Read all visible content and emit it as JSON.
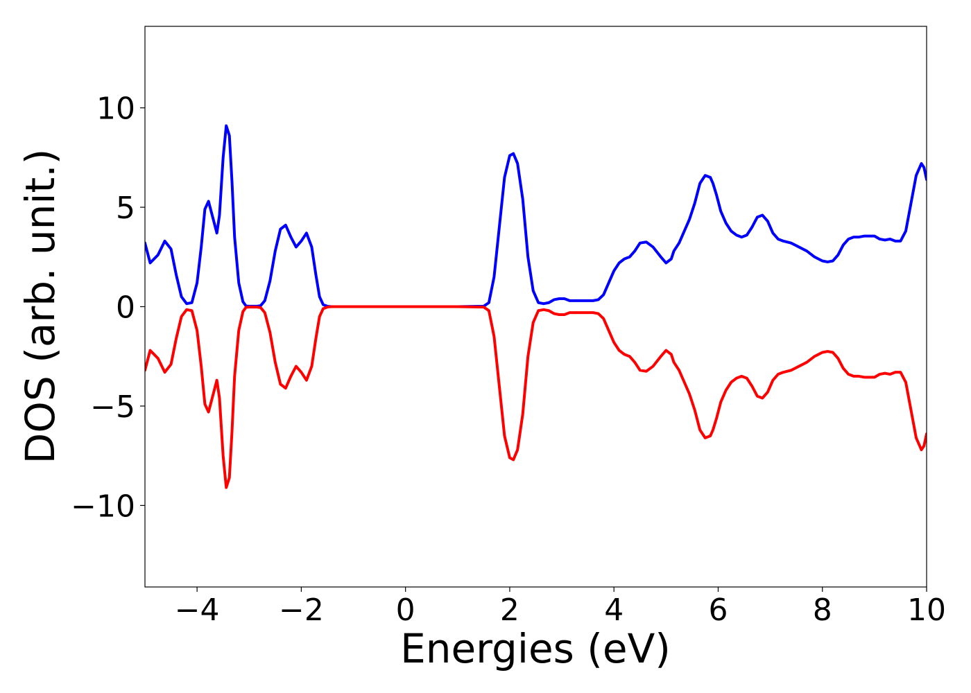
{
  "chart_data": {
    "type": "line",
    "title": "",
    "xlabel": "Energies (eV)",
    "ylabel": "DOS (arb. unit.)",
    "xlim": [
      -5,
      10
    ],
    "ylim": [
      -14.1,
      14.1
    ],
    "x_ticks": [
      -4,
      -2,
      0,
      2,
      4,
      6,
      8,
      10
    ],
    "x_tick_labels": [
      "−4",
      "−2",
      "0",
      "2",
      "4",
      "6",
      "8",
      "10"
    ],
    "y_ticks": [
      -10,
      -5,
      0,
      5,
      10
    ],
    "y_tick_labels": [
      "−10",
      "−5",
      "0",
      "5",
      "10"
    ],
    "grid": false,
    "legend": "none",
    "series": [
      {
        "color": "#0000ff",
        "x": [
          -5.0,
          -4.9,
          -4.75,
          -4.62,
          -4.5,
          -4.4,
          -4.3,
          -4.2,
          -4.1,
          -4.0,
          -3.92,
          -3.85,
          -3.78,
          -3.7,
          -3.62,
          -3.57,
          -3.5,
          -3.44,
          -3.38,
          -3.33,
          -3.28,
          -3.2,
          -3.12,
          -3.06,
          -3.0,
          -2.94,
          -2.86,
          -2.78,
          -2.7,
          -2.6,
          -2.5,
          -2.4,
          -2.3,
          -2.2,
          -2.1,
          -2.0,
          -1.9,
          -1.8,
          -1.72,
          -1.65,
          -1.58,
          -1.5,
          -1.42,
          -1.33,
          -1.24,
          -1.15,
          -1.06,
          -1.0,
          -0.94,
          -0.86,
          -0.78,
          -0.7,
          -0.6,
          -0.5,
          0.0,
          0.5,
          1.0,
          1.5,
          1.6,
          1.7,
          1.8,
          1.9,
          2.0,
          2.07,
          2.15,
          2.25,
          2.35,
          2.45,
          2.55,
          2.65,
          2.75,
          2.85,
          2.95,
          3.05,
          3.15,
          3.3,
          3.45,
          3.6,
          3.7,
          3.8,
          3.9,
          4.0,
          4.1,
          4.2,
          4.3,
          4.4,
          4.5,
          4.62,
          4.75,
          4.9,
          5.0,
          5.1,
          5.15,
          5.25,
          5.35,
          5.45,
          5.55,
          5.65,
          5.75,
          5.85,
          5.9,
          5.97,
          6.05,
          6.15,
          6.25,
          6.35,
          6.45,
          6.55,
          6.65,
          6.75,
          6.85,
          6.95,
          7.05,
          7.15,
          7.25,
          7.4,
          7.55,
          7.7,
          7.85,
          8.0,
          8.1,
          8.2,
          8.3,
          8.4,
          8.5,
          8.6,
          8.7,
          8.8,
          8.9,
          9.0,
          9.1,
          9.2,
          9.3,
          9.4,
          9.5,
          9.6,
          9.7,
          9.8,
          9.9,
          9.95,
          10.0
        ],
        "y": [
          3.2,
          2.2,
          2.6,
          3.3,
          2.9,
          1.6,
          0.5,
          0.15,
          0.2,
          1.2,
          3.0,
          4.9,
          5.3,
          4.5,
          3.7,
          4.6,
          7.5,
          9.1,
          8.6,
          6.3,
          3.5,
          1.2,
          0.25,
          0.03,
          0.02,
          0.02,
          0.02,
          0.05,
          0.3,
          1.3,
          2.8,
          3.9,
          4.1,
          3.5,
          3.0,
          3.3,
          3.7,
          3.0,
          1.6,
          0.5,
          0.1,
          0.02,
          0.0,
          0.0,
          0.0,
          0.0,
          0.0,
          0.0,
          0.0,
          0.0,
          0.0,
          0.0,
          0.0,
          0.0,
          0.0,
          0.0,
          0.0,
          0.02,
          0.2,
          1.5,
          4.0,
          6.5,
          7.6,
          7.7,
          7.2,
          5.4,
          2.5,
          0.8,
          0.2,
          0.15,
          0.2,
          0.35,
          0.4,
          0.4,
          0.3,
          0.3,
          0.3,
          0.3,
          0.35,
          0.6,
          1.2,
          1.8,
          2.2,
          2.4,
          2.5,
          2.8,
          3.2,
          3.25,
          3.0,
          2.5,
          2.2,
          2.4,
          2.8,
          3.2,
          3.8,
          4.4,
          5.2,
          6.2,
          6.6,
          6.5,
          6.2,
          5.6,
          4.8,
          4.2,
          3.8,
          3.6,
          3.5,
          3.6,
          4.0,
          4.5,
          4.6,
          4.3,
          3.7,
          3.4,
          3.3,
          3.2,
          3.0,
          2.8,
          2.5,
          2.3,
          2.25,
          2.3,
          2.6,
          3.1,
          3.4,
          3.5,
          3.5,
          3.55,
          3.55,
          3.55,
          3.4,
          3.35,
          3.4,
          3.3,
          3.3,
          3.8,
          5.2,
          6.6,
          7.2,
          7.0,
          6.4
        ]
      },
      {
        "color": "#ff0000",
        "x": [
          -5.0,
          -4.9,
          -4.75,
          -4.62,
          -4.5,
          -4.4,
          -4.3,
          -4.2,
          -4.1,
          -4.0,
          -3.92,
          -3.85,
          -3.78,
          -3.7,
          -3.62,
          -3.57,
          -3.5,
          -3.44,
          -3.38,
          -3.33,
          -3.28,
          -3.2,
          -3.12,
          -3.06,
          -3.0,
          -2.94,
          -2.86,
          -2.78,
          -2.7,
          -2.6,
          -2.5,
          -2.4,
          -2.3,
          -2.2,
          -2.1,
          -2.0,
          -1.9,
          -1.8,
          -1.72,
          -1.65,
          -1.58,
          -1.5,
          -1.42,
          -1.33,
          -1.24,
          -1.15,
          -1.06,
          -1.0,
          -0.94,
          -0.86,
          -0.78,
          -0.7,
          -0.6,
          -0.5,
          0.0,
          0.5,
          1.0,
          1.5,
          1.6,
          1.7,
          1.8,
          1.9,
          2.0,
          2.07,
          2.15,
          2.25,
          2.35,
          2.45,
          2.55,
          2.65,
          2.75,
          2.85,
          2.95,
          3.05,
          3.15,
          3.3,
          3.45,
          3.6,
          3.7,
          3.8,
          3.9,
          4.0,
          4.1,
          4.2,
          4.3,
          4.4,
          4.5,
          4.62,
          4.75,
          4.9,
          5.0,
          5.1,
          5.15,
          5.25,
          5.35,
          5.45,
          5.55,
          5.65,
          5.75,
          5.85,
          5.9,
          5.97,
          6.05,
          6.15,
          6.25,
          6.35,
          6.45,
          6.55,
          6.65,
          6.75,
          6.85,
          6.95,
          7.05,
          7.15,
          7.25,
          7.4,
          7.55,
          7.7,
          7.85,
          8.0,
          8.1,
          8.2,
          8.3,
          8.4,
          8.5,
          8.6,
          8.7,
          8.8,
          8.9,
          9.0,
          9.1,
          9.2,
          9.3,
          9.4,
          9.5,
          9.6,
          9.7,
          9.8,
          9.9,
          9.95,
          10.0
        ],
        "y": [
          -3.2,
          -2.2,
          -2.6,
          -3.3,
          -2.9,
          -1.6,
          -0.5,
          -0.15,
          -0.2,
          -1.2,
          -3.0,
          -4.9,
          -5.3,
          -4.5,
          -3.7,
          -4.6,
          -7.5,
          -9.1,
          -8.6,
          -6.3,
          -3.5,
          -1.2,
          -0.25,
          -0.03,
          -0.02,
          -0.02,
          -0.02,
          -0.05,
          -0.3,
          -1.3,
          -2.8,
          -3.9,
          -4.1,
          -3.5,
          -3.0,
          -3.3,
          -3.7,
          -3.0,
          -1.6,
          -0.5,
          -0.1,
          -0.02,
          0.0,
          0.0,
          0.0,
          0.0,
          0.0,
          0.0,
          0.0,
          0.0,
          0.0,
          0.0,
          0.0,
          0.0,
          0.0,
          0.0,
          0.0,
          -0.02,
          -0.2,
          -1.5,
          -4.0,
          -6.5,
          -7.6,
          -7.7,
          -7.2,
          -5.4,
          -2.5,
          -0.8,
          -0.2,
          -0.15,
          -0.2,
          -0.35,
          -0.4,
          -0.4,
          -0.3,
          -0.3,
          -0.3,
          -0.3,
          -0.35,
          -0.6,
          -1.2,
          -1.8,
          -2.2,
          -2.4,
          -2.5,
          -2.8,
          -3.2,
          -3.25,
          -3.0,
          -2.5,
          -2.2,
          -2.4,
          -2.8,
          -3.2,
          -3.8,
          -4.4,
          -5.2,
          -6.2,
          -6.6,
          -6.5,
          -6.2,
          -5.6,
          -4.8,
          -4.2,
          -3.8,
          -3.6,
          -3.5,
          -3.6,
          -4.0,
          -4.5,
          -4.6,
          -4.3,
          -3.7,
          -3.4,
          -3.3,
          -3.2,
          -3.0,
          -2.8,
          -2.5,
          -2.3,
          -2.25,
          -2.3,
          -2.6,
          -3.1,
          -3.4,
          -3.5,
          -3.5,
          -3.55,
          -3.55,
          -3.55,
          -3.4,
          -3.35,
          -3.4,
          -3.3,
          -3.3,
          -3.8,
          -5.2,
          -6.6,
          -7.2,
          -7.0,
          -6.4
        ]
      }
    ]
  }
}
